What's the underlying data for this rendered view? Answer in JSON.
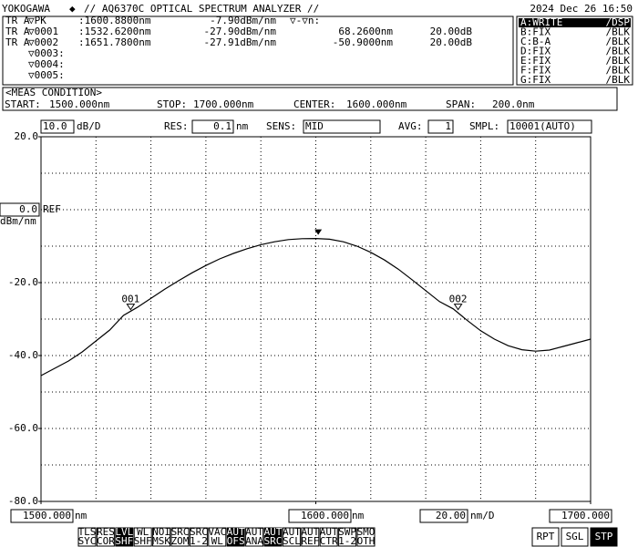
{
  "header": {
    "brand": "YOKOGAWA",
    "symbol": "◆",
    "title": "// AQ6370C OPTICAL SPECTRUM ANALYZER //",
    "datetime": "2024 Dec 26 16:50"
  },
  "marker_table": {
    "rows": [
      {
        "trace": "TR A",
        "marker": "▽PK",
        "wavelength": ":1600.8800nm",
        "level": "-7.90dBm/nm",
        "delta": "▽-▽n:"
      },
      {
        "trace": "TR A",
        "marker": "▽0001",
        "wavelength": ":1532.6200nm",
        "level": "-27.90dBm/nm",
        "delta_wl": "68.2600nm",
        "delta_level": "20.00dB"
      },
      {
        "trace": "TR A",
        "marker": "▽0002",
        "wavelength": ":1651.7800nm",
        "level": "-27.91dBm/nm",
        "delta_wl": "-50.9000nm",
        "delta_level": "20.00dB"
      },
      {
        "marker": "▽0003:"
      },
      {
        "marker": "▽0004:"
      },
      {
        "marker": "▽0005:"
      }
    ]
  },
  "traces": [
    {
      "name": "A:WRITE",
      "mode": "/DSP",
      "active": true
    },
    {
      "name": "B:FIX",
      "mode": "/BLK"
    },
    {
      "name": "C:B-A",
      "mode": "/BLK"
    },
    {
      "name": "D:FIX",
      "mode": "/BLK"
    },
    {
      "name": "E:FIX",
      "mode": "/BLK"
    },
    {
      "name": "F:FIX",
      "mode": "/BLK"
    },
    {
      "name": "G:FIX",
      "mode": "/BLK"
    }
  ],
  "meas_condition": {
    "title": "<MEAS CONDITION>",
    "items": [
      {
        "label": "START:",
        "value": "1500.000nm"
      },
      {
        "label": "STOP:",
        "value": "1700.000nm"
      },
      {
        "label": "CENTER:",
        "value": "1600.000nm"
      },
      {
        "label": "SPAN:",
        "value": "200.0nm"
      }
    ]
  },
  "settings": {
    "scale": "10.0",
    "scale_unit": "dB/D",
    "res_label": "RES:",
    "res": "0.1",
    "res_unit": "nm",
    "sens_label": "SENS:",
    "sens": "MID",
    "avg_label": "AVG:",
    "avg": "1",
    "smpl_label": "SMPL:",
    "smpl": "10001(AUTO)",
    "ref": "0.0",
    "ref_label": "REF",
    "ref_unit": "dBm/nm",
    "x_unit": "nm",
    "span_div": "20.00",
    "span_div_unit": "nm/D"
  },
  "chart_data": {
    "type": "line",
    "color": "#000000",
    "x": [
      1500,
      1505,
      1510,
      1515,
      1520,
      1525,
      1530,
      1535,
      1540,
      1545,
      1550,
      1555,
      1560,
      1565,
      1570,
      1575,
      1580,
      1585,
      1590,
      1595,
      1600,
      1605,
      1610,
      1615,
      1620,
      1625,
      1630,
      1635,
      1640,
      1645,
      1650,
      1655,
      1660,
      1665,
      1670,
      1675,
      1680,
      1685,
      1690,
      1695,
      1700
    ],
    "values": [
      -45.5,
      -43.5,
      -41.5,
      -39,
      -36,
      -33,
      -29,
      -26.8,
      -24.3,
      -21.8,
      -19.5,
      -17.3,
      -15.3,
      -13.5,
      -12,
      -10.7,
      -9.6,
      -8.8,
      -8.2,
      -7.95,
      -7.9,
      -8.1,
      -8.8,
      -10,
      -11.7,
      -13.8,
      -16.3,
      -19.2,
      -22.2,
      -25.2,
      -27.2,
      -30.3,
      -33.2,
      -35.5,
      -37.3,
      -38.4,
      -38.8,
      -38.5,
      -37.5,
      -36.5,
      -35.5
    ],
    "xlim": [
      1500,
      1700
    ],
    "ylim": [
      -80,
      20
    ],
    "xticks": [
      {
        "value": 1500,
        "label": "1500.000"
      },
      {
        "value": 1600,
        "label": "1600.000"
      },
      {
        "value": 1700,
        "label": "1700.000"
      }
    ],
    "yticks": [
      {
        "value": 20,
        "label": "20.0"
      },
      {
        "value": -20,
        "label": "-20.0"
      },
      {
        "value": -40,
        "label": "-40.0"
      },
      {
        "value": -60,
        "label": "-60.0"
      },
      {
        "value": -80,
        "label": "-80.0"
      }
    ],
    "xgrid": [
      1520,
      1540,
      1560,
      1580,
      1600,
      1620,
      1640,
      1660,
      1680
    ],
    "ygrid": [
      10,
      0,
      -10,
      -20,
      -30,
      -40,
      -50,
      -60,
      -70
    ],
    "peak": {
      "x": 1600.88,
      "y": -7.9
    },
    "markers": [
      {
        "label": "001",
        "x": 1532.62,
        "y": -27.9
      },
      {
        "label": "002",
        "x": 1651.78,
        "y": -27.91
      }
    ]
  },
  "buttons": [
    [
      "TLS",
      "SYC"
    ],
    [
      "RES",
      "COR"
    ],
    [
      "LVL",
      "SHF"
    ],
    [
      "WL",
      "SHF"
    ],
    [
      "NOI",
      "MSK"
    ],
    [
      "SRC",
      "ZOM"
    ],
    [
      "SRC",
      "1-2"
    ],
    [
      "VAC",
      "WL"
    ],
    [
      "AUT",
      "OFS"
    ],
    [
      "AUT",
      "ANA"
    ],
    [
      "AUT",
      "SRC"
    ],
    [
      "AUT",
      "SCL"
    ],
    [
      "AUT",
      "REF"
    ],
    [
      "AUT",
      "CTR"
    ],
    [
      "SWP",
      "1-2"
    ],
    [
      "SMO",
      "OTH"
    ]
  ],
  "dark_buttons": [
    2,
    8,
    10
  ],
  "side_buttons": [
    "RPT",
    "SGL",
    "STP"
  ],
  "dark_side": 2
}
